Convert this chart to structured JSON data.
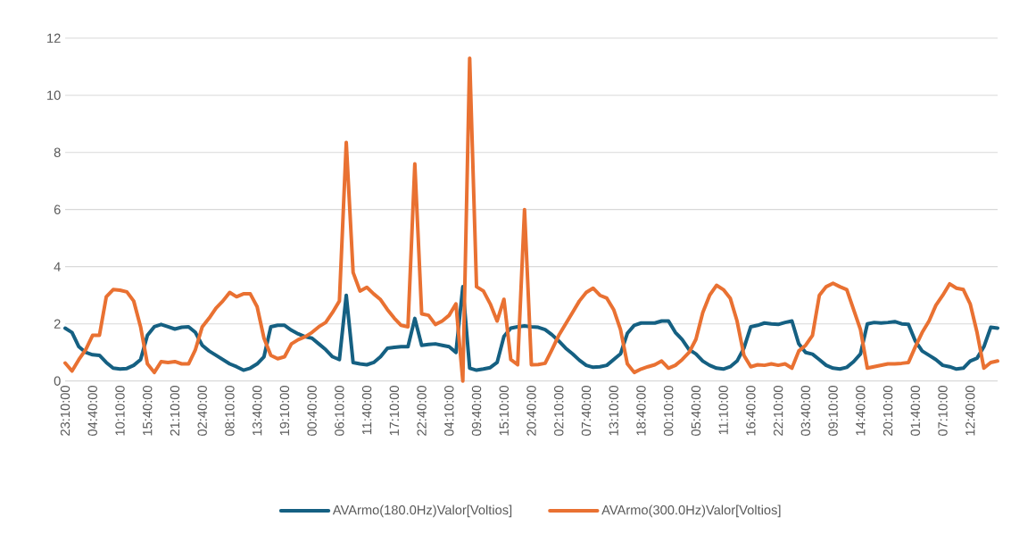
{
  "chart_data": {
    "type": "line",
    "categories": [
      "23:10:00",
      null,
      null,
      null,
      "04:40:00",
      null,
      null,
      null,
      "10:10:00",
      null,
      null,
      null,
      "15:40:00",
      null,
      null,
      null,
      "21:10:00",
      null,
      null,
      null,
      "02:40:00",
      null,
      null,
      null,
      "08:10:00",
      null,
      null,
      null,
      "13:40:00",
      null,
      null,
      null,
      "19:10:00",
      null,
      null,
      null,
      "00:40:00",
      null,
      null,
      null,
      "06:10:00",
      null,
      null,
      null,
      "11:40:00",
      null,
      null,
      null,
      "17:10:00",
      null,
      null,
      null,
      "22:40:00",
      null,
      null,
      null,
      "04:10:00",
      null,
      null,
      null,
      "09:40:00",
      null,
      null,
      null,
      "15:10:00",
      null,
      null,
      null,
      "20:40:00",
      null,
      null,
      null,
      "02:10:00",
      null,
      null,
      null,
      "07:40:00",
      null,
      null,
      null,
      "13:10:00",
      null,
      null,
      null,
      "18:40:00",
      null,
      null,
      null,
      "00:10:00",
      null,
      null,
      null,
      "05:40:00",
      null,
      null,
      null,
      "11:10:00",
      null,
      null,
      null,
      "16:40:00",
      null,
      null,
      null,
      "22:10:00",
      null,
      null,
      null,
      "03:40:00",
      null,
      null,
      null,
      "09:10:00",
      null,
      null,
      null,
      "14:40:00",
      null,
      null,
      null,
      "20:10:00",
      null,
      null,
      null,
      "01:40:00",
      null,
      null,
      null,
      "07:10:00",
      null,
      null,
      null,
      "12:40:00",
      null,
      null,
      null,
      null
    ],
    "series": [
      {
        "name": "AVArmo(180.0Hz)Valor[Voltios]",
        "color": "#156082",
        "values": [
          1.85,
          1.7,
          1.2,
          1.0,
          0.92,
          0.9,
          0.65,
          0.45,
          0.42,
          0.44,
          0.55,
          0.75,
          1.6,
          1.9,
          1.98,
          1.9,
          1.82,
          1.88,
          1.9,
          1.7,
          1.25,
          1.05,
          0.9,
          0.75,
          0.6,
          0.5,
          0.38,
          0.45,
          0.6,
          0.85,
          1.9,
          1.95,
          1.95,
          1.78,
          1.65,
          1.55,
          1.5,
          1.3,
          1.1,
          0.85,
          0.75,
          3.0,
          0.65,
          0.6,
          0.57,
          0.65,
          0.85,
          1.15,
          1.18,
          1.2,
          1.2,
          2.19,
          1.25,
          1.28,
          1.3,
          1.25,
          1.2,
          1.0,
          3.3,
          0.45,
          0.38,
          0.42,
          0.47,
          0.65,
          1.56,
          1.85,
          1.9,
          1.93,
          1.9,
          1.88,
          1.8,
          1.62,
          1.4,
          1.15,
          0.95,
          0.73,
          0.55,
          0.48,
          0.5,
          0.55,
          0.75,
          0.95,
          1.67,
          1.95,
          2.03,
          2.03,
          2.03,
          2.1,
          2.1,
          1.7,
          1.45,
          1.1,
          0.95,
          0.7,
          0.55,
          0.45,
          0.42,
          0.5,
          0.7,
          1.15,
          1.9,
          1.95,
          2.03,
          2.0,
          1.98,
          2.05,
          2.1,
          1.3,
          1.0,
          0.94,
          0.75,
          0.55,
          0.45,
          0.42,
          0.48,
          0.68,
          0.95,
          2.0,
          2.05,
          2.03,
          2.05,
          2.08,
          2.0,
          1.98,
          1.4,
          1.05,
          0.9,
          0.75,
          0.55,
          0.5,
          0.42,
          0.45,
          0.7,
          0.8,
          1.2,
          1.88,
          1.85
        ]
      },
      {
        "name": "AVArmo(300.0Hz)Valor[Voltios]",
        "color": "#e97132",
        "values": [
          0.63,
          0.35,
          0.75,
          1.1,
          1.6,
          1.6,
          2.95,
          3.2,
          3.18,
          3.12,
          2.8,
          1.9,
          0.6,
          0.3,
          0.68,
          0.65,
          0.68,
          0.6,
          0.6,
          1.1,
          1.9,
          2.2,
          2.55,
          2.8,
          3.1,
          2.95,
          3.05,
          3.05,
          2.6,
          1.5,
          0.9,
          0.78,
          0.85,
          1.3,
          1.45,
          1.55,
          1.7,
          1.9,
          2.05,
          2.4,
          2.8,
          8.35,
          3.8,
          3.15,
          3.28,
          3.05,
          2.85,
          2.5,
          2.2,
          1.95,
          1.9,
          7.6,
          2.35,
          2.3,
          1.98,
          2.1,
          2.3,
          2.7,
          0,
          11.3,
          3.3,
          3.15,
          2.7,
          2.1,
          2.86,
          0.75,
          0.57,
          6.0,
          0.57,
          0.58,
          0.62,
          1.1,
          1.6,
          2.0,
          2.4,
          2.8,
          3.1,
          3.25,
          3.0,
          2.9,
          2.5,
          1.8,
          0.6,
          0.3,
          0.42,
          0.5,
          0.57,
          0.7,
          0.45,
          0.55,
          0.75,
          1.0,
          1.46,
          2.4,
          3.0,
          3.35,
          3.2,
          2.9,
          2.1,
          0.9,
          0.5,
          0.57,
          0.55,
          0.6,
          0.55,
          0.6,
          0.45,
          1.05,
          1.25,
          1.6,
          3.0,
          3.3,
          3.42,
          3.3,
          3.2,
          2.5,
          1.8,
          0.45,
          0.5,
          0.55,
          0.6,
          0.6,
          0.62,
          0.65,
          1.2,
          1.7,
          2.1,
          2.65,
          3.0,
          3.4,
          3.25,
          3.2,
          2.7,
          1.7,
          0.45,
          0.65,
          0.7
        ]
      }
    ],
    "ylim": [
      0,
      12
    ],
    "yticks": [
      0,
      2,
      4,
      6,
      8,
      10,
      12
    ],
    "grid": "y",
    "legend": "bottom",
    "marker": "none",
    "line_style": "solid"
  }
}
